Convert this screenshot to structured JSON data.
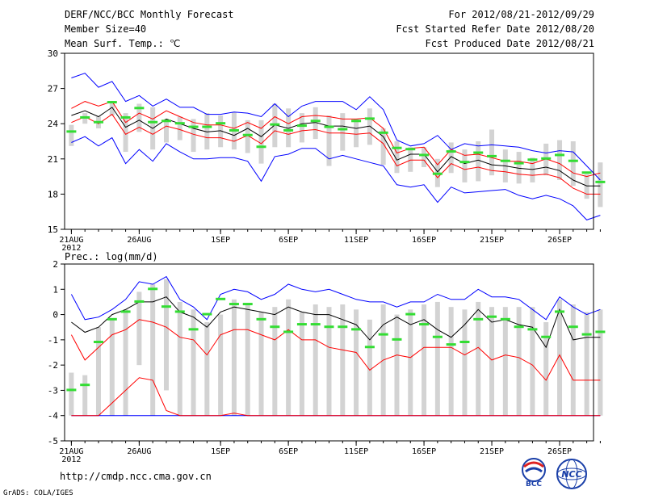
{
  "header": {
    "title": "DERF/NCC/BCC Monthly Forecast",
    "member_size": "Member Size=40",
    "variable": "Mean Surf. Temp.: ℃",
    "forecast_period": "For 2012/08/21-2012/09/29",
    "started_refer": "Fcst Started Refer Date 2012/08/20",
    "produced": "Fcst Produced Date 2012/08/21"
  },
  "footer": {
    "url": "http://cmdp.ncc.cma.gov.cn",
    "grads": "GrADS: COLA/IGES",
    "logo_bcc": "BCC",
    "logo_ncc": "NCC"
  },
  "colors": {
    "max_min": "#0000ff",
    "mean": "#000000",
    "spread": "#ff0000",
    "box": "#d3d3d3",
    "obs": "#33dd33"
  },
  "chart_data": [
    {
      "type": "box",
      "title": "Mean Surf. Temp.: ℃",
      "xlim": [
        0.5,
        39.5
      ],
      "ylim": [
        15,
        30
      ],
      "yticks": [
        15,
        18,
        21,
        24,
        27,
        30
      ],
      "xticks": [
        {
          "day": 1,
          "label": "21AUG",
          "sublabel": "2012"
        },
        {
          "day": 6,
          "label": "26AUG"
        },
        {
          "day": 12,
          "label": "1SEP"
        },
        {
          "day": 17,
          "label": "6SEP"
        },
        {
          "day": 22,
          "label": "11SEP"
        },
        {
          "day": 27,
          "label": "16SEP"
        },
        {
          "day": 32,
          "label": "21SEP"
        },
        {
          "day": 37,
          "label": "26SEP"
        }
      ],
      "max": [
        27.9,
        28.3,
        27.1,
        27.6,
        25.9,
        26.4,
        25.5,
        26.1,
        25.4,
        25.4,
        24.8,
        24.8,
        25.0,
        24.9,
        24.6,
        25.7,
        24.6,
        25.5,
        25.9,
        25.9,
        25.9,
        25.2,
        26.3,
        25.2,
        22.6,
        22.1,
        22.3,
        23.0,
        21.8,
        22.3,
        22.1,
        22.2,
        22.1,
        22.0,
        21.7,
        21.5,
        21.7,
        21.6,
        20.4,
        19.2
      ],
      "mean_plus": [
        25.3,
        25.9,
        25.5,
        25.9,
        24.1,
        24.9,
        24.4,
        25.1,
        24.6,
        24.1,
        23.9,
        23.9,
        23.6,
        24.1,
        23.6,
        24.6,
        24.0,
        24.6,
        24.7,
        24.6,
        24.4,
        24.4,
        24.5,
        23.6,
        21.5,
        21.9,
        22.0,
        20.5,
        21.8,
        21.3,
        21.4,
        21.1,
        20.8,
        20.8,
        20.6,
        21.0,
        20.6,
        19.8,
        19.5,
        19.8
      ],
      "mean": [
        24.7,
        25.1,
        24.6,
        25.4,
        23.7,
        24.3,
        23.6,
        24.4,
        24.0,
        23.6,
        23.3,
        23.4,
        23.0,
        23.6,
        22.9,
        23.9,
        23.6,
        24.0,
        24.1,
        23.8,
        23.8,
        23.6,
        23.8,
        22.9,
        20.9,
        21.4,
        21.4,
        19.9,
        21.2,
        20.6,
        20.9,
        20.5,
        20.4,
        20.2,
        20.1,
        20.3,
        20.0,
        19.2,
        18.7,
        18.7
      ],
      "mean_minus": [
        24.1,
        24.6,
        24.0,
        24.8,
        23.1,
        23.7,
        23.1,
        23.8,
        23.5,
        23.1,
        22.8,
        22.8,
        22.5,
        23.0,
        22.3,
        23.4,
        23.1,
        23.4,
        23.5,
        23.2,
        23.2,
        23.1,
        23.2,
        22.3,
        20.4,
        20.9,
        20.9,
        19.4,
        20.6,
        20.1,
        20.3,
        20.0,
        19.9,
        19.7,
        19.6,
        19.7,
        19.4,
        18.5,
        18.0,
        18.0
      ],
      "min": [
        22.4,
        22.9,
        22.1,
        22.8,
        20.6,
        21.8,
        20.8,
        22.3,
        21.6,
        21.0,
        21.0,
        21.1,
        21.1,
        20.8,
        19.1,
        21.2,
        21.4,
        21.9,
        21.9,
        21.0,
        21.3,
        21.0,
        20.7,
        20.4,
        18.8,
        18.6,
        18.8,
        17.3,
        18.6,
        18.1,
        18.2,
        18.3,
        18.4,
        17.9,
        17.6,
        17.9,
        17.6,
        17.0,
        15.8,
        16.2
      ],
      "box_high": [
        23.9,
        24.9,
        24.6,
        25.9,
        24.9,
        25.7,
        25.4,
        24.4,
        24.6,
        24.4,
        24.9,
        24.7,
        25.0,
        24.3,
        24.3,
        25.7,
        25.3,
        24.9,
        25.4,
        24.7,
        24.9,
        24.4,
        25.3,
        23.6,
        22.5,
        22.0,
        22.0,
        21.0,
        22.4,
        21.8,
        22.5,
        23.5,
        21.8,
        21.6,
        21.1,
        22.3,
        22.6,
        22.5,
        19.7,
        20.7
      ],
      "box_low": [
        22.1,
        24.0,
        23.6,
        24.7,
        21.6,
        23.3,
        21.8,
        22.4,
        22.6,
        21.6,
        21.8,
        22.0,
        21.8,
        21.5,
        20.6,
        22.0,
        22.0,
        22.4,
        22.7,
        20.4,
        21.7,
        22.0,
        22.2,
        20.5,
        19.8,
        19.9,
        20.3,
        18.6,
        19.8,
        19.0,
        19.1,
        19.6,
        19.0,
        18.9,
        19.0,
        19.6,
        19.2,
        18.7,
        17.6,
        16.9
      ],
      "obs": [
        23.3,
        24.5,
        24.1,
        25.8,
        24.5,
        25.3,
        24.1,
        24.2,
        24.0,
        23.7,
        23.7,
        24.0,
        23.4,
        23.0,
        22.0,
        23.9,
        23.4,
        23.8,
        24.2,
        23.7,
        23.5,
        24.2,
        24.4,
        23.2,
        21.9,
        21.8,
        21.3,
        19.7,
        21.6,
        20.7,
        21.5,
        21.2,
        20.8,
        20.6,
        20.9,
        21.0,
        21.3,
        20.8,
        19.8,
        19.0
      ]
    },
    {
      "type": "box",
      "title": "Prec.: log(mm/d)",
      "xlim": [
        0.5,
        39.5
      ],
      "ylim": [
        -5,
        2
      ],
      "yticks": [
        -5,
        -4,
        -3,
        -2,
        -1,
        0,
        1,
        2
      ],
      "xticks": [
        {
          "day": 1,
          "label": "21AUG",
          "sublabel": "2012"
        },
        {
          "day": 6,
          "label": "26AUG"
        },
        {
          "day": 12,
          "label": "1SEP"
        },
        {
          "day": 17,
          "label": "6SEP"
        },
        {
          "day": 22,
          "label": "11SEP"
        },
        {
          "day": 27,
          "label": "16SEP"
        },
        {
          "day": 32,
          "label": "21SEP"
        },
        {
          "day": 37,
          "label": "26SEP"
        }
      ],
      "max": [
        0.8,
        -0.2,
        -0.1,
        0.2,
        0.6,
        1.3,
        1.2,
        1.5,
        0.6,
        0.3,
        -0.2,
        0.8,
        1.0,
        0.9,
        0.6,
        0.8,
        1.2,
        1.0,
        0.9,
        1.0,
        0.8,
        0.6,
        0.5,
        0.5,
        0.3,
        0.5,
        0.5,
        0.8,
        0.6,
        0.6,
        1.0,
        0.7,
        0.7,
        0.6,
        0.2,
        -0.2,
        0.7,
        0.3,
        0.0,
        0.2
      ],
      "mean": [
        -0.3,
        -0.7,
        -0.5,
        0.0,
        0.2,
        0.5,
        0.5,
        0.7,
        0.1,
        -0.1,
        -0.5,
        0.1,
        0.3,
        0.2,
        0.1,
        0.0,
        0.3,
        0.1,
        0.0,
        0.0,
        -0.2,
        -0.4,
        -1.0,
        -0.4,
        -0.1,
        -0.4,
        -0.2,
        -0.6,
        -0.9,
        -0.4,
        0.2,
        -0.3,
        -0.2,
        -0.4,
        -0.5,
        -1.3,
        0.2,
        -1.0,
        -0.9,
        -0.9
      ],
      "mean_plus": [
        -0.8,
        -1.8,
        -1.3,
        -0.8,
        -0.6,
        -0.2,
        -0.3,
        -0.5,
        -0.9,
        -1.0,
        -1.6,
        -0.8,
        -0.6,
        -0.6,
        -0.8,
        -1.0,
        -0.6,
        -1.0,
        -1.0,
        -1.3,
        -1.4,
        -1.5,
        -2.2,
        -1.8,
        -1.6,
        -1.7,
        -1.3,
        -1.3,
        -1.3,
        -1.6,
        -1.3,
        -1.8,
        -1.6,
        -1.7,
        -2.0,
        -2.6,
        -1.6,
        -2.6,
        -2.6,
        -2.6
      ],
      "mean_minus": [
        -4.0,
        -4.0,
        -4.0,
        -3.5,
        -3.0,
        -2.5,
        -2.6,
        -3.8,
        -4.0,
        -4.0,
        -4.0,
        -4.0,
        -3.9,
        -4.0,
        -4.0,
        -4.0,
        -4.0,
        -4.0,
        -4.0,
        -4.0,
        -4.0,
        -4.0,
        -4.0,
        -4.0,
        -4.0,
        -4.0,
        -4.0,
        -4.0,
        -4.0,
        -4.0,
        -4.0,
        -4.0,
        -4.0,
        -4.0,
        -4.0,
        -4.0,
        -4.0,
        -4.0,
        -4.0,
        -4.0
      ],
      "min": [
        -4.0,
        -4.0,
        -4.0,
        -4.0,
        -4.0,
        -4.0,
        -4.0,
        -4.0,
        -4.0,
        -4.0,
        -4.0,
        -4.0,
        -4.0,
        -4.0,
        -4.0,
        -4.0,
        -4.0,
        -4.0,
        -4.0,
        -4.0,
        -4.0,
        -4.0,
        -4.0,
        -4.0,
        -4.0,
        -4.0,
        -4.0,
        -4.0,
        -4.0,
        -4.0,
        -4.0,
        -4.0,
        -4.0,
        -4.0,
        -4.0,
        -4.0,
        -4.0,
        -4.0,
        -4.0,
        -4.0
      ],
      "box_high": [
        -2.3,
        -2.4,
        -0.5,
        -0.2,
        0.2,
        0.9,
        1.2,
        1.4,
        0.5,
        0.2,
        -0.3,
        0.0,
        0.6,
        0.4,
        0.1,
        0.3,
        0.6,
        0.1,
        0.4,
        0.3,
        0.4,
        0.2,
        -0.2,
        0.4,
        0.0,
        0.2,
        0.4,
        0.5,
        0.3,
        0.2,
        0.5,
        0.3,
        0.3,
        0.3,
        0.3,
        -0.3,
        0.6,
        0.4,
        0.1,
        0.2
      ],
      "box_low": [
        -4.0,
        -4.0,
        -4.0,
        -4.0,
        -4.0,
        -2.0,
        -4.0,
        -3.0,
        -4.0,
        -4.0,
        -4.0,
        -4.0,
        -4.0,
        -4.0,
        -4.0,
        -4.0,
        -4.0,
        -4.0,
        -4.0,
        -4.0,
        -4.0,
        -4.0,
        -4.0,
        -4.0,
        -4.0,
        -4.0,
        -4.0,
        -4.0,
        -4.0,
        -4.0,
        -4.0,
        -4.0,
        -4.0,
        -4.0,
        -4.0,
        -4.0,
        -4.0,
        -4.0,
        -4.0,
        -4.0
      ],
      "obs": [
        -3.0,
        -2.8,
        -1.1,
        -0.2,
        0.1,
        0.5,
        1.0,
        0.3,
        0.1,
        -0.6,
        0.0,
        0.6,
        0.4,
        0.4,
        -0.2,
        -0.5,
        -0.7,
        -0.4,
        -0.4,
        -0.5,
        -0.5,
        -0.6,
        -1.3,
        -0.8,
        -1.0,
        0.0,
        -0.4,
        -0.9,
        -1.2,
        -1.1,
        -0.2,
        -0.1,
        -0.2,
        -0.5,
        -0.6,
        -0.9,
        0.1,
        -0.5,
        -0.8,
        -0.7
      ]
    }
  ]
}
